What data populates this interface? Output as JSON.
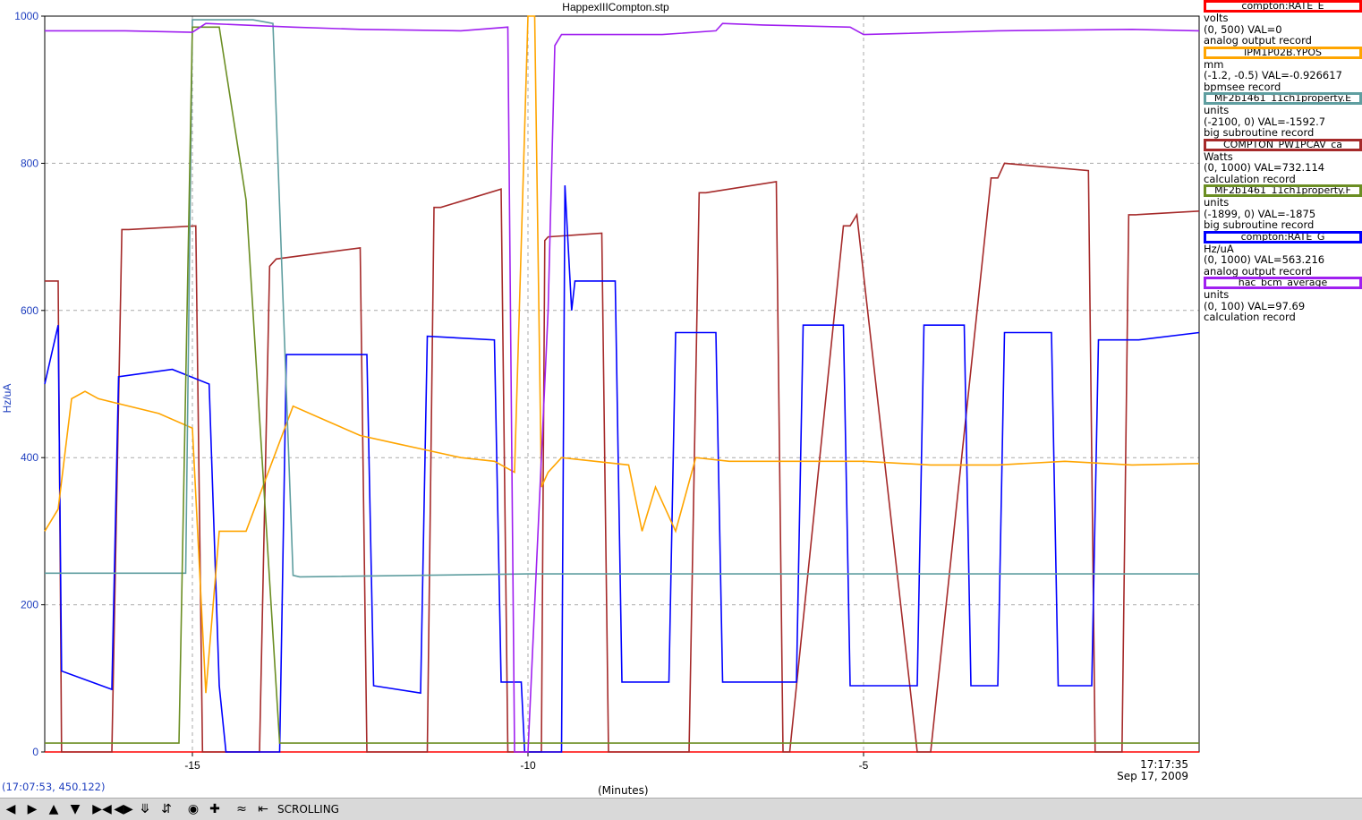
{
  "title": "HappexIIICompton.stp",
  "y_axis_label": "Hz/uA",
  "x_axis_unit": "(Minutes)",
  "cursor_readout": "(17:07:53, 450.122)",
  "timestamp": {
    "time": "17:17:35",
    "date": "Sep 17, 2009"
  },
  "toolbar": {
    "buttons": [
      "arrow-left-icon",
      "arrow-right-icon",
      "arrow-up-icon",
      "arrow-down-icon",
      "compress-horizontal-icon",
      "expand-horizontal-icon",
      "compress-vertical-icon",
      "expand-vertical-icon",
      "record-icon",
      "plus-icon",
      "waveform-icon",
      "arrow-to-edge-icon"
    ],
    "mode_label": "SCROLLING"
  },
  "legend": [
    {
      "name": "compton:RATE_E",
      "unit": "volts",
      "range": "(0, 500) VAL=0",
      "record": "analog output record",
      "color": "#ff0000"
    },
    {
      "name": "IPM1P02B.YPOS",
      "unit": "mm",
      "range": "(-1.2, -0.5) VAL=-0.926617",
      "record": "bpmsee record",
      "color": "#ffa500"
    },
    {
      "name": "MF2b1461_11ch1property.E",
      "unit": "units",
      "range": "(-2100, 0) VAL=-1592.7",
      "record": "big subroutine record",
      "color": "#5f9ea0"
    },
    {
      "name": "COMPTON_PW1PCAV_ca",
      "unit": "Watts",
      "range": "(0, 1000) VAL=732.114",
      "record": "calculation record",
      "color": "#a52a2a"
    },
    {
      "name": "MF2b1461_11ch1property.F",
      "unit": "units",
      "range": "(-1899, 0) VAL=-1875",
      "record": "big subroutine record",
      "color": "#6b8e23"
    },
    {
      "name": "compton:RATE_G",
      "unit": "Hz/uA",
      "range": "(0, 1000) VAL=563.216",
      "record": "analog output record",
      "color": "#0000ff"
    },
    {
      "name": "hac_bcm_average",
      "unit": "units",
      "range": "(0, 100) VAL=97.69",
      "record": "calculation record",
      "color": "#a020f0"
    }
  ],
  "chart_data": {
    "type": "line",
    "title": "HappexIIICompton.stp",
    "xlabel": "(Minutes)",
    "ylabel": "Hz/uA",
    "xlim": [
      -17.2,
      0
    ],
    "ylim": [
      0,
      1000
    ],
    "x_ticks": [
      -15,
      -10,
      -5
    ],
    "y_ticks": [
      0,
      200,
      400,
      600,
      800,
      1000
    ],
    "grid": true,
    "series": [
      {
        "name": "compton:RATE_E",
        "color": "#ff0000",
        "x": [
          -17.2,
          0
        ],
        "y": [
          0,
          0
        ]
      },
      {
        "name": "COMPTON_PW1PCAV_ca",
        "color": "#a52a2a",
        "x": [
          -17.2,
          -17,
          -16.95,
          -16.2,
          -16.05,
          -15.95,
          -14.95,
          -14.85,
          -14.0,
          -13.85,
          -13.75,
          -12.5,
          -12.4,
          -12.3,
          -11.5,
          -11.4,
          -11.3,
          -10.4,
          -10.3,
          -9.8,
          -9.75,
          -9.7,
          -8.9,
          -8.8,
          -8.7,
          -7.6,
          -7.45,
          -7.35,
          -6.3,
          -6.2,
          -6.1,
          -5.3,
          -5.2,
          -5.1,
          -4.2,
          -4.1,
          -4.0,
          -3.1,
          -3.0,
          -2.9,
          -1.65,
          -1.55,
          -1.45,
          -1.15,
          -1.05,
          -0.95,
          0
        ],
        "y": [
          640,
          640,
          0,
          0,
          710,
          710,
          715,
          0,
          0,
          660,
          670,
          685,
          0,
          0,
          0,
          740,
          740,
          765,
          0,
          0,
          695,
          700,
          705,
          0,
          0,
          0,
          760,
          760,
          775,
          0,
          0,
          715,
          715,
          730,
          0,
          0,
          0,
          780,
          780,
          800,
          790,
          0,
          0,
          0,
          730,
          730,
          735
        ]
      },
      {
        "name": "compton:RATE_G",
        "color": "#0000ff",
        "x": [
          -17.2,
          -17.0,
          -16.95,
          -16.2,
          -16.1,
          -15.3,
          -14.75,
          -14.6,
          -14.5,
          -13.7,
          -13.6,
          -12.4,
          -12.3,
          -11.6,
          -11.5,
          -10.5,
          -10.4,
          -10.1,
          -10.05,
          -9.5,
          -9.45,
          -9.35,
          -9.3,
          -8.7,
          -8.6,
          -7.9,
          -7.8,
          -7.2,
          -7.1,
          -6.0,
          -5.9,
          -5.3,
          -5.2,
          -4.2,
          -4.1,
          -3.5,
          -3.4,
          -3.0,
          -2.9,
          -2.2,
          -2.1,
          -1.6,
          -1.5,
          -1.0,
          -0.9,
          0
        ],
        "y": [
          500,
          580,
          110,
          85,
          510,
          520,
          500,
          90,
          0,
          0,
          540,
          540,
          90,
          80,
          565,
          560,
          95,
          95,
          0,
          0,
          770,
          600,
          640,
          640,
          95,
          95,
          570,
          570,
          95,
          95,
          580,
          580,
          90,
          90,
          580,
          580,
          90,
          90,
          570,
          570,
          90,
          90,
          560,
          560,
          560,
          570
        ]
      },
      {
        "name": "IPM1P02B.YPOS",
        "color": "#ffa500",
        "x": [
          -17.2,
          -17.0,
          -16.8,
          -16.6,
          -16.4,
          -15.5,
          -15.0,
          -14.8,
          -14.6,
          -14.2,
          -13.5,
          -13.0,
          -12.5,
          -12.0,
          -11.5,
          -11.0,
          -10.5,
          -10.2,
          -10.0,
          -9.9,
          -9.8,
          -9.7,
          -9.5,
          -9.0,
          -8.5,
          -8.3,
          -8.1,
          -7.8,
          -7.5,
          -7.0,
          -6.0,
          -5.0,
          -4.0,
          -3.0,
          -2.0,
          -1.0,
          0
        ],
        "y": [
          300,
          330,
          480,
          490,
          480,
          460,
          440,
          80,
          300,
          300,
          470,
          450,
          430,
          420,
          410,
          400,
          395,
          380,
          1000,
          1000,
          360,
          380,
          400,
          395,
          390,
          300,
          360,
          300,
          400,
          395,
          395,
          395,
          390,
          390,
          395,
          390,
          392
        ]
      },
      {
        "name": "MF2b1461_11ch1property.E",
        "color": "#5f9ea0",
        "x": [
          -17.2,
          -15.1,
          -15.0,
          -14.1,
          -13.8,
          -13.5,
          -13.4,
          -10,
          -5,
          0
        ],
        "y": [
          243,
          243,
          995,
          995,
          990,
          240,
          238,
          242,
          242,
          242
        ]
      },
      {
        "name": "MF2b1461_11ch1property.F",
        "color": "#6b8e23",
        "x": [
          -17.2,
          -15.2,
          -15.0,
          -14.6,
          -14.2,
          -13.7,
          -13.6,
          0
        ],
        "y": [
          12,
          12,
          985,
          985,
          750,
          12,
          12,
          12
        ]
      },
      {
        "name": "hac_bcm_average",
        "color": "#a020f0",
        "x": [
          -17.2,
          -16,
          -15.0,
          -14.8,
          -13.5,
          -12.5,
          -11.0,
          -10.3,
          -10.2,
          -10.0,
          -9.7,
          -9.6,
          -9.5,
          -8.0,
          -7.2,
          -7.1,
          -6.5,
          -5.2,
          -5.0,
          -3.0,
          -1.0,
          0
        ],
        "y": [
          980,
          980,
          978,
          990,
          985,
          982,
          980,
          985,
          0,
          0,
          600,
          960,
          975,
          975,
          980,
          990,
          988,
          985,
          975,
          980,
          982,
          980
        ]
      }
    ]
  }
}
